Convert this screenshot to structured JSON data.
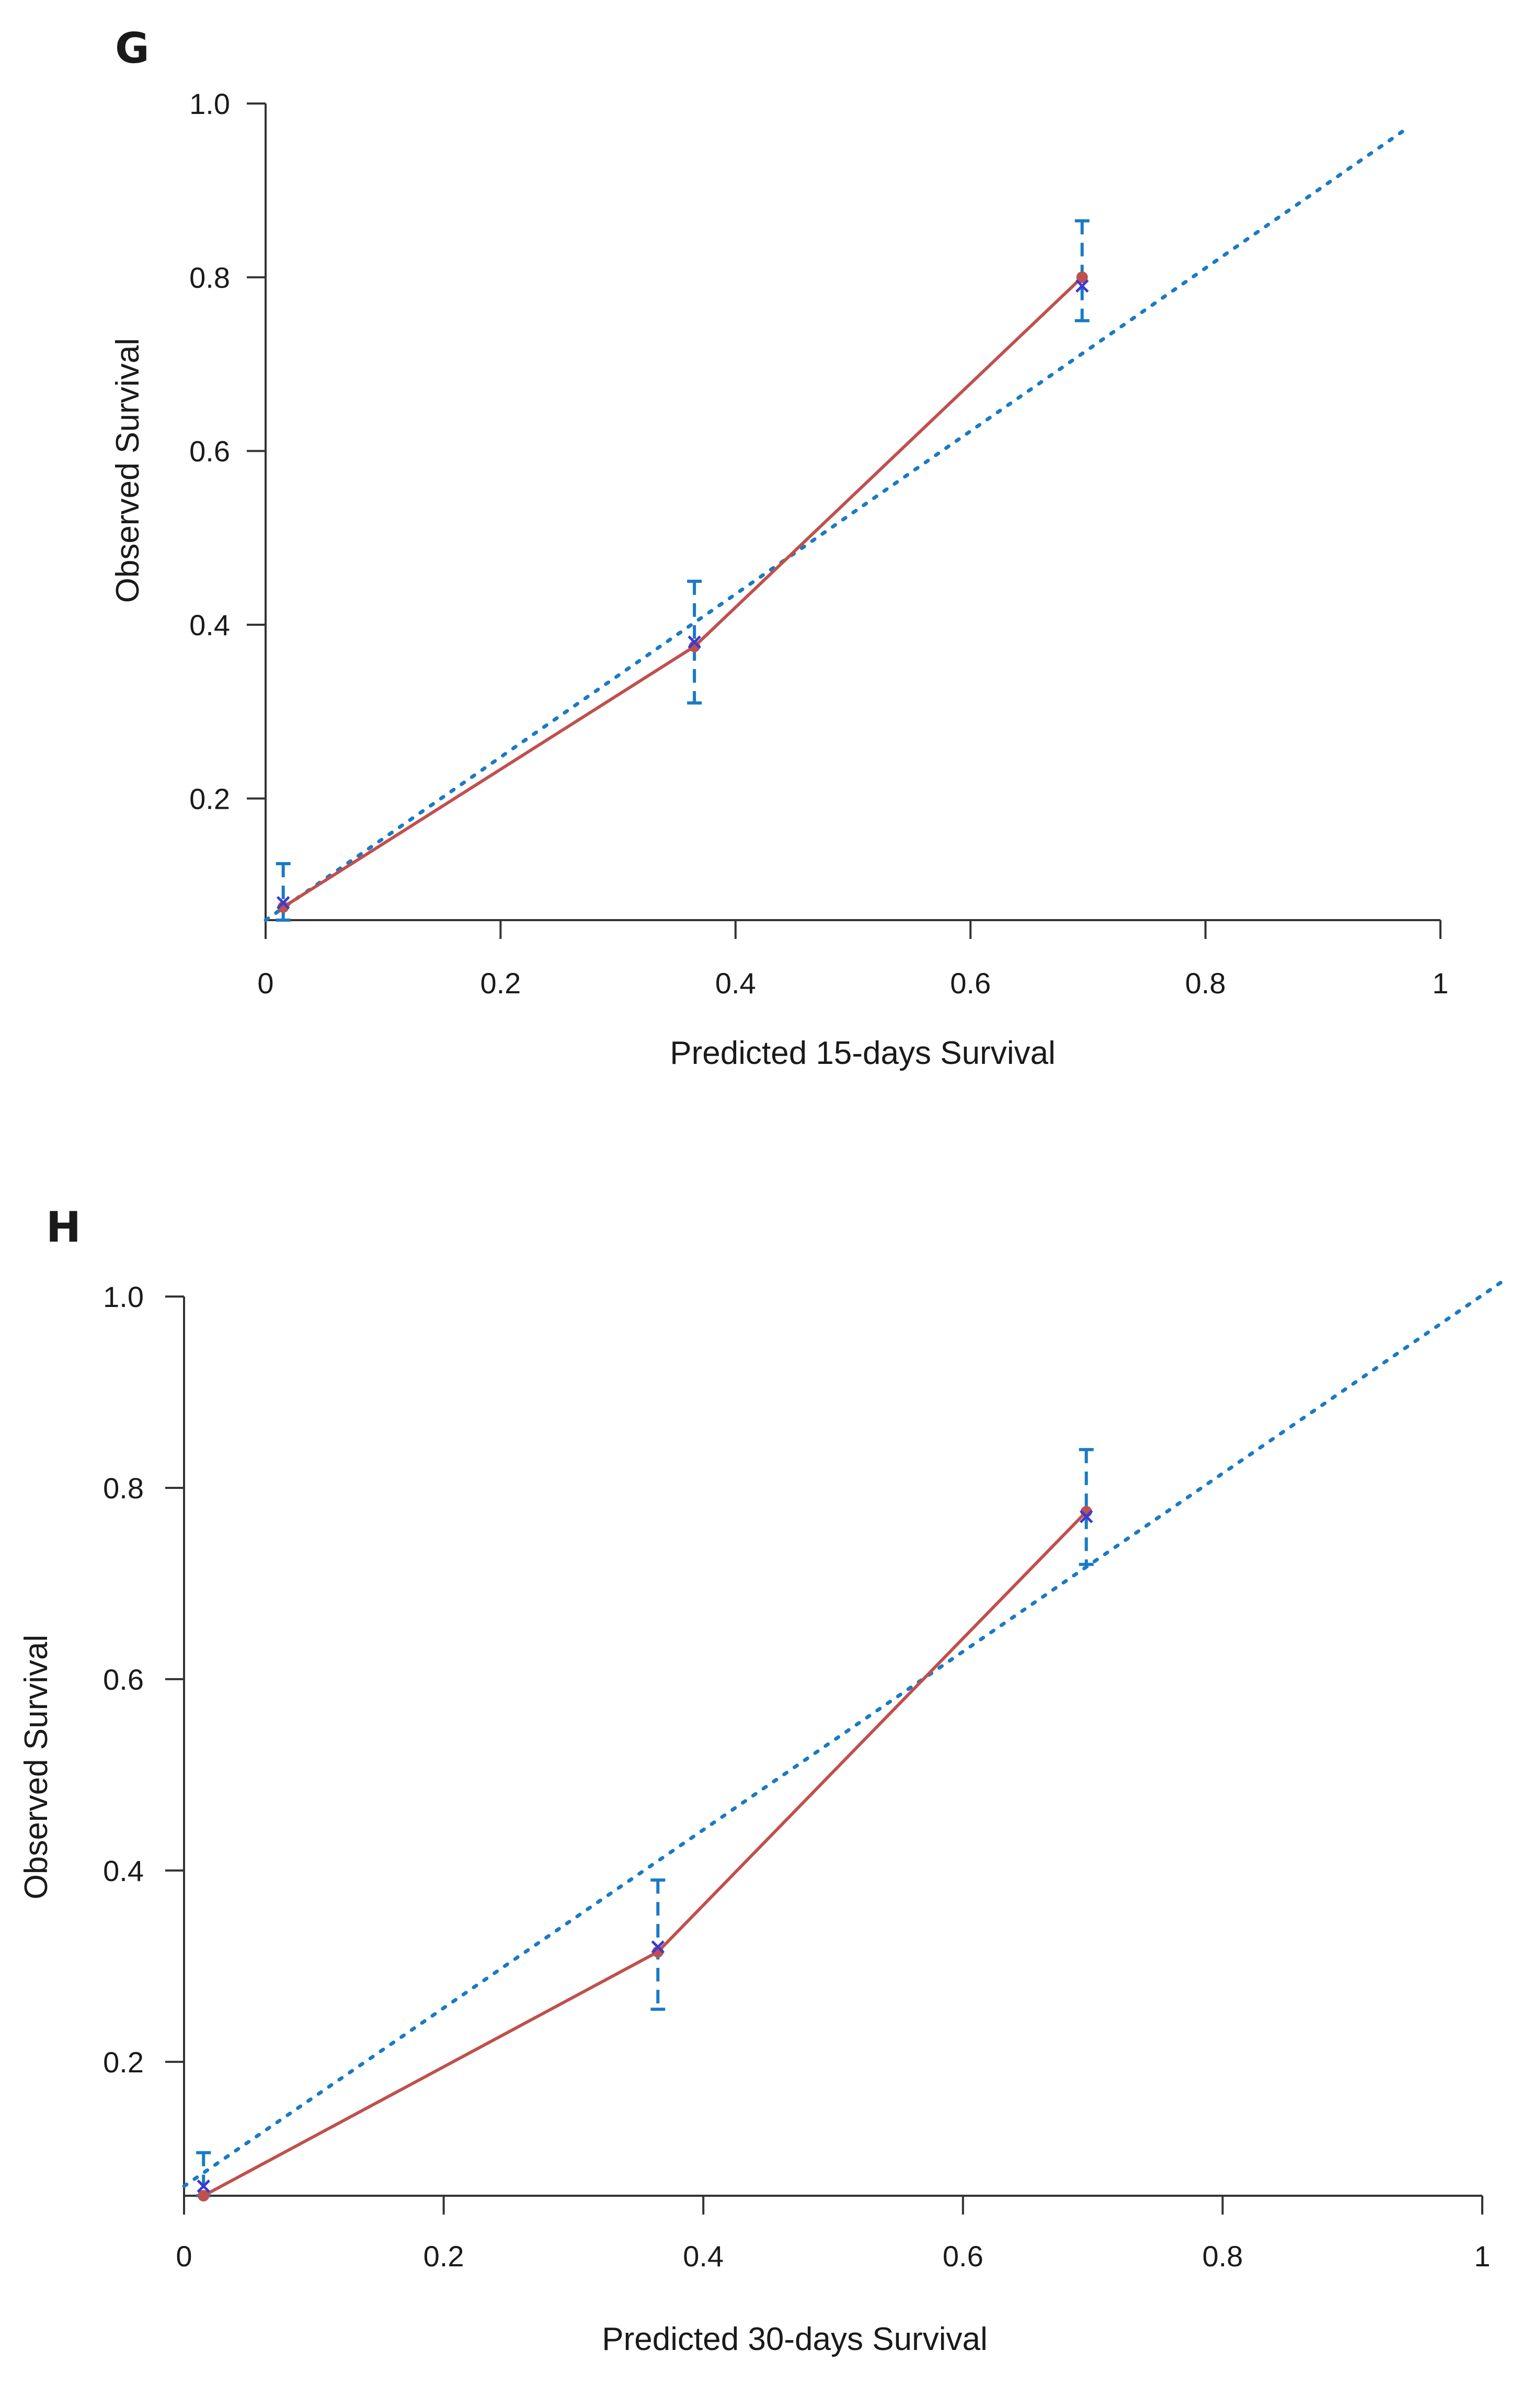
{
  "chart_data": [
    {
      "panel": "G",
      "type": "line",
      "title": "",
      "xlabel": "Predicted 15-days Survival",
      "ylabel": "Observed Survival",
      "xlim": [
        0,
        1
      ],
      "ylim": [
        0.06,
        1.0
      ],
      "x_ticks": [
        "0",
        "0.2",
        "0.4",
        "0.6",
        "0.8",
        "1"
      ],
      "y_ticks": [
        "0.2",
        "0.4",
        "0.6",
        "0.8",
        "1.0"
      ],
      "ideal_line": {
        "x": [
          0.0,
          0.97
        ],
        "y": [
          0.06,
          0.97
        ]
      },
      "series": [
        {
          "name": "calibration",
          "x": [
            0.015,
            0.365,
            0.695
          ],
          "observed": [
            0.075,
            0.375,
            0.8
          ],
          "kaplan_meier": [
            0.08,
            0.38,
            0.79
          ],
          "ci_lower": [
            0.06,
            0.31,
            0.75
          ],
          "ci_upper": [
            0.125,
            0.45,
            0.865
          ]
        }
      ],
      "colors": {
        "calibration": "#c0504d",
        "ideal": "#1a7ac4",
        "error_bar": "#1a7ac4",
        "km_marker": "#3b3bd1"
      }
    },
    {
      "panel": "H",
      "type": "line",
      "title": "",
      "xlabel": "Predicted 30-days Survival",
      "ylabel": "Observed Survival",
      "xlim": [
        0,
        1
      ],
      "ylim": [
        0.06,
        1.0
      ],
      "x_ticks": [
        "0",
        "0.2",
        "0.4",
        "0.6",
        "0.8",
        "1"
      ],
      "y_ticks": [
        "0.2",
        "0.4",
        "0.6",
        "0.8",
        "1.0"
      ],
      "ideal_line": {
        "x": [
          0.0,
          1.02
        ],
        "y": [
          0.07,
          1.02
        ]
      },
      "series": [
        {
          "name": "calibration",
          "x": [
            0.015,
            0.365,
            0.695
          ],
          "observed": [
            0.06,
            0.315,
            0.775
          ],
          "kaplan_meier": [
            0.07,
            0.32,
            0.77
          ],
          "ci_lower": [
            0.06,
            0.255,
            0.72
          ],
          "ci_upper": [
            0.105,
            0.39,
            0.84
          ]
        }
      ],
      "colors": {
        "calibration": "#c0504d",
        "ideal": "#1a7ac4",
        "error_bar": "#1a7ac4",
        "km_marker": "#3b3bd1"
      }
    }
  ]
}
